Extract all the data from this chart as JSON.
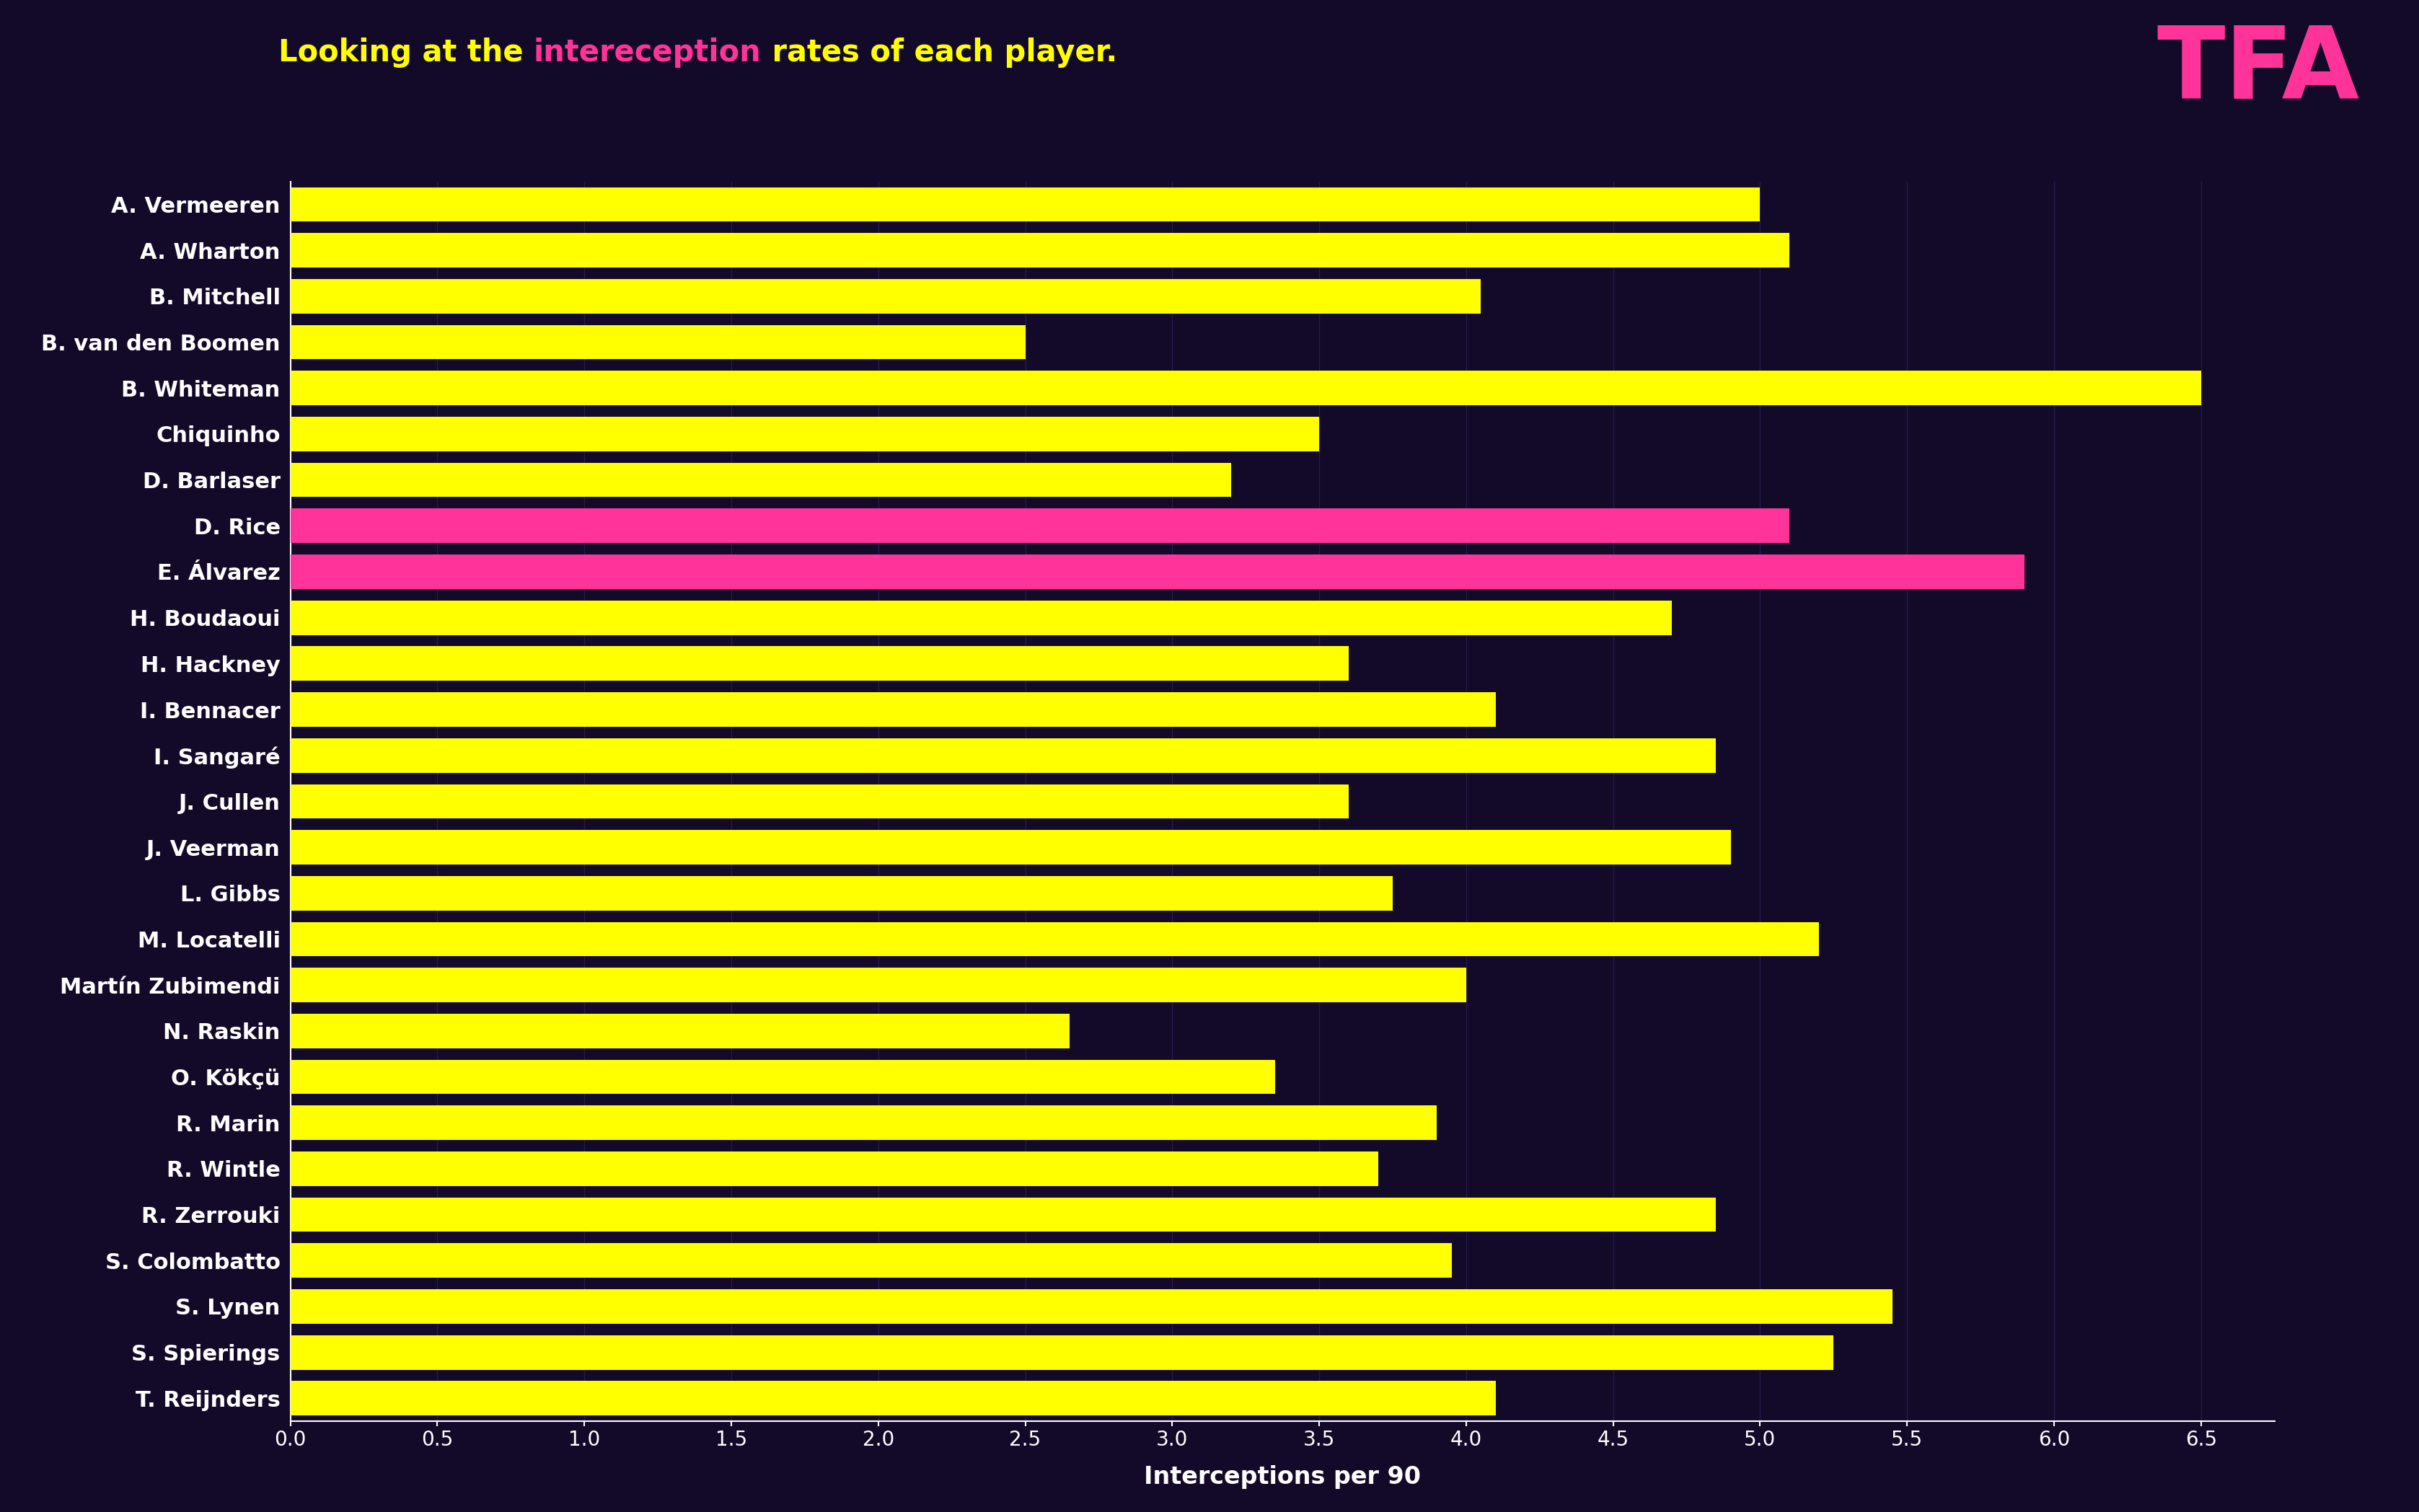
{
  "title_parts": [
    {
      "text": "Looking at the ",
      "color": "#FFFF00"
    },
    {
      "text": "intereception",
      "color": "#FF3399"
    },
    {
      "text": " rates of each player.",
      "color": "#FFFF00"
    }
  ],
  "players": [
    "A. Vermeeren",
    "A. Wharton",
    "B. Mitchell",
    "B. van den Boomen",
    "B. Whiteman",
    "Chiquinho",
    "D. Barlaser",
    "D. Rice",
    "E. Álvarez",
    "H. Boudaoui",
    "H. Hackney",
    "I. Bennacer",
    "I. Sangaré",
    "J. Cullen",
    "J. Veerman",
    "L. Gibbs",
    "M. Locatelli",
    "Martín Zubimendi",
    "N. Raskin",
    "O. Kökçü",
    "R. Marin",
    "R. Wintle",
    "R. Zerrouki",
    "S. Colombatto",
    "S. Lynen",
    "S. Spierings",
    "T. Reijnders"
  ],
  "values": [
    5.0,
    5.1,
    4.05,
    2.5,
    6.5,
    3.5,
    3.2,
    5.1,
    5.9,
    4.7,
    3.6,
    4.1,
    4.85,
    3.6,
    4.9,
    3.75,
    5.2,
    4.0,
    2.65,
    3.35,
    3.9,
    3.7,
    4.85,
    3.95,
    5.45,
    5.25,
    4.1
  ],
  "bar_colors": [
    "#FFFF00",
    "#FFFF00",
    "#FFFF00",
    "#FFFF00",
    "#FFFF00",
    "#FFFF00",
    "#FFFF00",
    "#FF3399",
    "#FF3399",
    "#FFFF00",
    "#FFFF00",
    "#FFFF00",
    "#FFFF00",
    "#FFFF00",
    "#FFFF00",
    "#FFFF00",
    "#FFFF00",
    "#FFFF00",
    "#FFFF00",
    "#FFFF00",
    "#FFFF00",
    "#FFFF00",
    "#FFFF00",
    "#FFFF00",
    "#FFFF00",
    "#FFFF00",
    "#FFFF00"
  ],
  "background_color": "#130928",
  "xlabel": "Interceptions per 90",
  "xlim": [
    0,
    6.75
  ],
  "xticks": [
    0.0,
    0.5,
    1.0,
    1.5,
    2.0,
    2.5,
    3.0,
    3.5,
    4.0,
    4.5,
    5.0,
    5.5,
    6.0,
    6.5
  ],
  "bar_height": 0.75,
  "title_fontsize": 30,
  "label_fontsize": 22,
  "tick_fontsize": 20,
  "xlabel_fontsize": 24,
  "tfa_text": "TFA",
  "tfa_color": "#FF3399",
  "tfa_fontsize": 100
}
